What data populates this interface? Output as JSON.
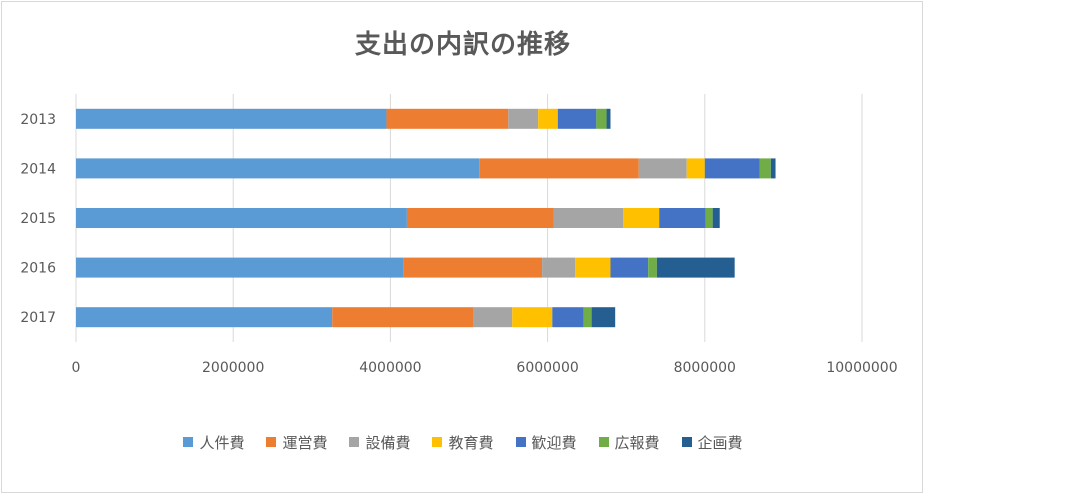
{
  "chart_data": {
    "type": "bar",
    "orientation": "horizontal",
    "stacked": true,
    "title": "支出の内訳の推移",
    "categories": [
      "2013",
      "2014",
      "2015",
      "2016",
      "2017"
    ],
    "series": [
      {
        "name": "人件費",
        "color": "#5b9bd5",
        "values": [
          3950000,
          5130000,
          4210000,
          4170000,
          3260000
        ]
      },
      {
        "name": "運営費",
        "color": "#ed7d31",
        "values": [
          1550000,
          2030000,
          1870000,
          1760000,
          1800000
        ]
      },
      {
        "name": "設備費",
        "color": "#a5a5a5",
        "values": [
          380000,
          610000,
          880000,
          420000,
          490000
        ]
      },
      {
        "name": "教育費",
        "color": "#ffc000",
        "values": [
          250000,
          230000,
          460000,
          450000,
          510000
        ]
      },
      {
        "name": "歓迎費",
        "color": "#4472c4",
        "values": [
          490000,
          700000,
          590000,
          480000,
          400000
        ]
      },
      {
        "name": "広報費",
        "color": "#70ad47",
        "values": [
          130000,
          140000,
          90000,
          110000,
          100000
        ]
      },
      {
        "name": "企画費",
        "color": "#255e91",
        "values": [
          50000,
          60000,
          90000,
          990000,
          300000
        ]
      }
    ],
    "xlim": [
      0,
      10000000
    ],
    "xticks": [
      "0",
      "2000000",
      "4000000",
      "6000000",
      "8000000",
      "10000000"
    ],
    "xtick_values": [
      0,
      2000000,
      4000000,
      6000000,
      8000000,
      10000000
    ],
    "grid": true,
    "legend_position": "bottom"
  }
}
